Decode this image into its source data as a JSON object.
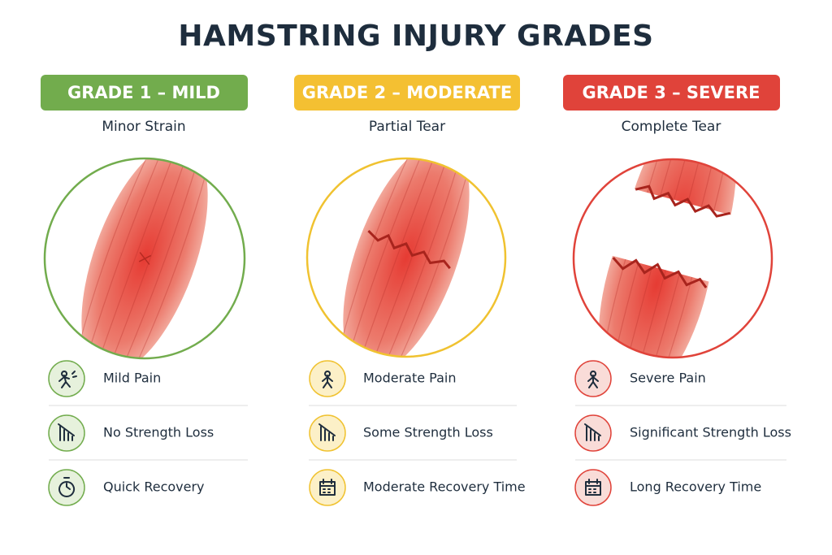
{
  "title": "HAMSTRING INJURY GRADES",
  "grades": [
    {
      "label": "GRADE 1 – MILD",
      "subtitle": "Minor Strain",
      "items": [
        "Mild Pain",
        "No Strength Loss",
        "Quick Recovery"
      ]
    },
    {
      "label": "GRADE 2 – MODERATE",
      "subtitle": "Partial Tear",
      "items": [
        "Moderate Pain",
        "Some Strength Loss",
        "Moderate Recovery Time"
      ]
    },
    {
      "label": "GRADE 3 – SEVERE",
      "subtitle": "Complete Tear",
      "items": [
        "Severe Pain",
        "Significant Strength Loss",
        "Long Recovery Time"
      ]
    }
  ]
}
